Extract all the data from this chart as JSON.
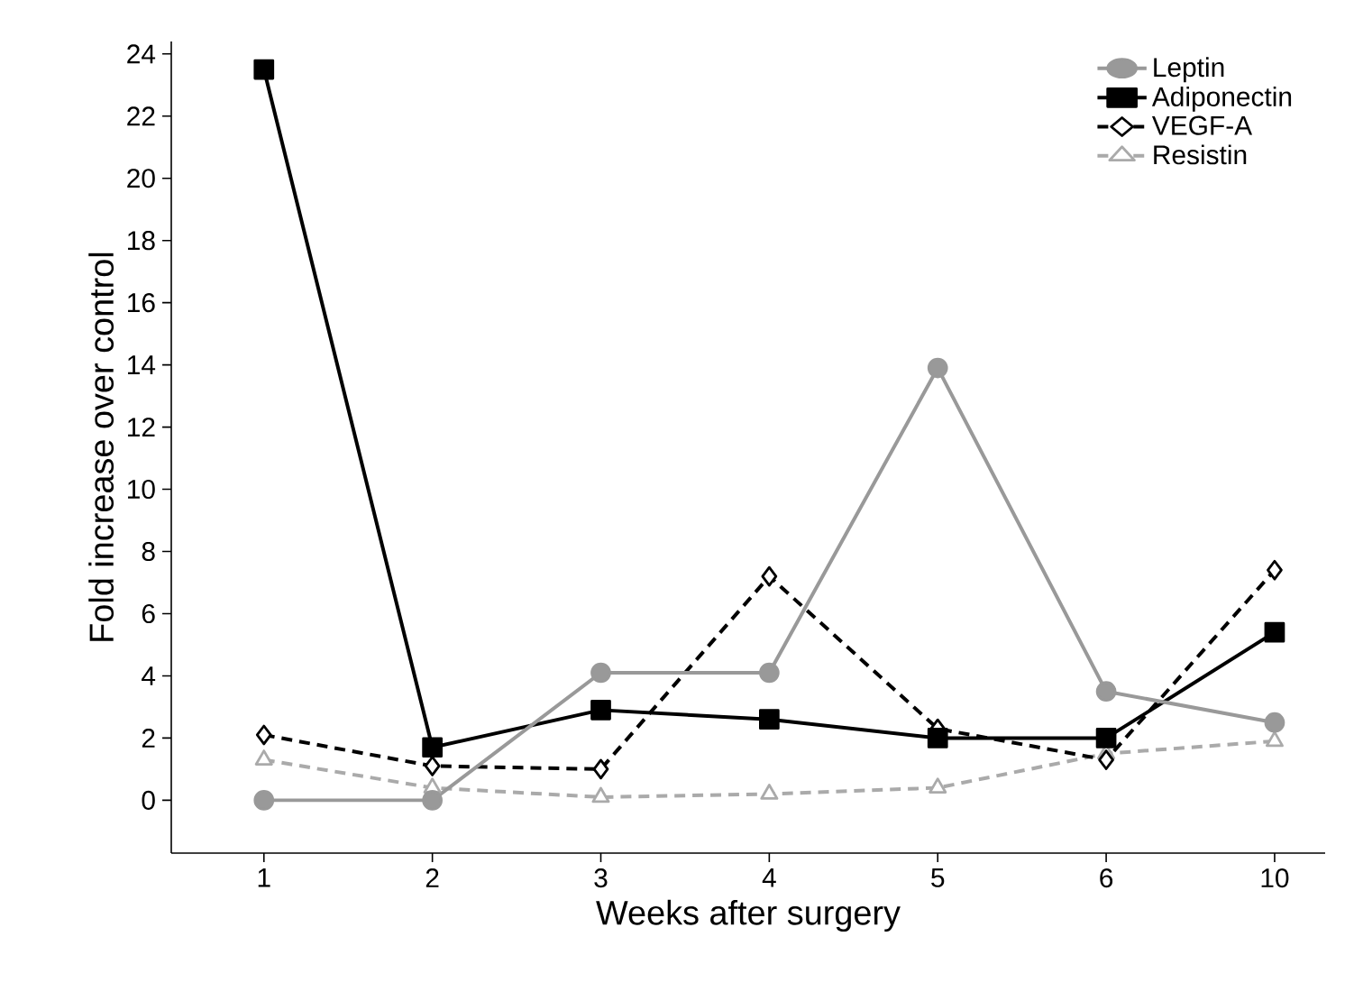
{
  "chart_data": {
    "type": "line",
    "xlabel": "Weeks after surgery",
    "ylabel": "Fold increase over control",
    "categories": [
      "1",
      "2",
      "3",
      "4",
      "5",
      "6",
      "10"
    ],
    "ylim": [
      -1.7,
      24.4
    ],
    "yticks": [
      0,
      2,
      4,
      6,
      8,
      10,
      12,
      14,
      16,
      18,
      20,
      22,
      24
    ],
    "legend": "top right",
    "grid": false,
    "series": [
      {
        "name": "Leptin",
        "color": "#999999",
        "marker": "circle",
        "line_style": "solid",
        "values": [
          0,
          0,
          4.1,
          4.1,
          13.9,
          3.5,
          2.5
        ]
      },
      {
        "name": "Adiponectin",
        "color": "#000000",
        "marker": "square",
        "line_style": "solid",
        "values": [
          23.5,
          1.7,
          2.9,
          2.6,
          2.0,
          2.0,
          5.4
        ]
      },
      {
        "name": "VEGF-A",
        "color": "#000000",
        "marker": "diamond",
        "line_style": "dashed",
        "values": [
          2.1,
          1.1,
          1.0,
          7.2,
          2.3,
          1.3,
          7.4
        ]
      },
      {
        "name": "Resistin",
        "color": "#aaaaaa",
        "marker": "triangle",
        "line_style": "dashed",
        "values": [
          1.3,
          0.4,
          0.1,
          0.2,
          0.4,
          1.5,
          1.9
        ]
      }
    ]
  }
}
